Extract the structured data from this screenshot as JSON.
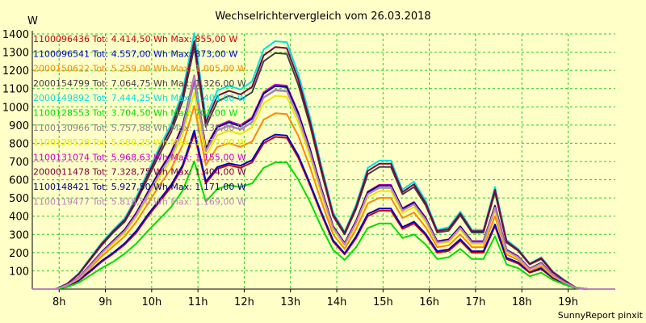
{
  "chart_data": {
    "type": "line",
    "title": "Wechselrichtervergleich vom 26.03.2018",
    "ylabel": "W",
    "footer": "SunnyReport pinxit",
    "ylim": [
      0,
      1400
    ],
    "yticks": [
      100,
      200,
      300,
      400,
      500,
      600,
      700,
      800,
      900,
      1000,
      1100,
      1200,
      1300,
      1400
    ],
    "xlim": [
      7.0,
      19.6
    ],
    "xticks": [
      {
        "v": 7.58,
        "label": "8h"
      },
      {
        "v": 8.58,
        "label": "9h"
      },
      {
        "v": 9.58,
        "label": "10h"
      },
      {
        "v": 10.58,
        "label": "11h"
      },
      {
        "v": 11.58,
        "label": "12h"
      },
      {
        "v": 12.58,
        "label": "13h"
      },
      {
        "v": 13.58,
        "label": "14h"
      },
      {
        "v": 14.58,
        "label": "15h"
      },
      {
        "v": 15.58,
        "label": "16h"
      },
      {
        "v": 16.58,
        "label": "17h"
      },
      {
        "v": 17.58,
        "label": "18h"
      },
      {
        "v": 18.58,
        "label": "19h"
      }
    ],
    "x": [
      7.0,
      7.25,
      7.5,
      7.75,
      8.0,
      8.25,
      8.5,
      8.75,
      9.0,
      9.25,
      9.5,
      9.75,
      10.0,
      10.25,
      10.5,
      10.75,
      11.0,
      11.25,
      11.5,
      11.75,
      12.0,
      12.25,
      12.5,
      12.75,
      13.0,
      13.25,
      13.5,
      13.75,
      14.0,
      14.25,
      14.5,
      14.75,
      15.0,
      15.25,
      15.5,
      15.75,
      16.0,
      16.25,
      16.5,
      16.75,
      17.0,
      17.25,
      17.5,
      17.75,
      18.0,
      18.25,
      18.5,
      18.75,
      19.0,
      19.25,
      19.6
    ],
    "series": [
      {
        "name": "1100096436 Tot: 4.414,50 Wh Max: 855,00 W",
        "color": "#cc0000",
        "values": [
          0,
          0,
          0,
          15,
          45,
          95,
          150,
          195,
          245,
          310,
          400,
          480,
          560,
          670,
          850,
          580,
          660,
          680,
          665,
          695,
          800,
          835,
          830,
          720,
          570,
          410,
          260,
          190,
          280,
          400,
          430,
          430,
          330,
          360,
          295,
          200,
          210,
          265,
          200,
          200,
          345,
          165,
          140,
          90,
          110,
          60,
          30,
          5,
          0,
          0,
          0
        ]
      },
      {
        "name": "1100096541 Tot: 4.557,00 Wh Max: 873,00 W",
        "color": "#0000cc",
        "values": [
          0,
          0,
          0,
          17,
          48,
          100,
          155,
          200,
          252,
          320,
          410,
          490,
          572,
          680,
          870,
          590,
          670,
          690,
          677,
          708,
          814,
          848,
          842,
          732,
          580,
          420,
          268,
          196,
          290,
          412,
          442,
          442,
          340,
          370,
          304,
          208,
          218,
          274,
          208,
          208,
          355,
          172,
          146,
          94,
          115,
          64,
          32,
          6,
          0,
          0,
          0
        ]
      },
      {
        "name": "2000150622 Tot: 5.259,00 Wh Max: 1.005,00 W",
        "color": "#ff8800",
        "values": [
          0,
          0,
          0,
          20,
          55,
          115,
          180,
          235,
          290,
          370,
          470,
          570,
          660,
          790,
          1005,
          680,
          780,
          800,
          780,
          810,
          930,
          965,
          960,
          840,
          670,
          480,
          300,
          220,
          330,
          470,
          500,
          500,
          390,
          420,
          340,
          230,
          240,
          300,
          230,
          230,
          400,
          190,
          160,
          100,
          125,
          70,
          35,
          6,
          0,
          0,
          0
        ]
      },
      {
        "name": "2000154799 Tot: 7.064,75 Wh Max: 1.326,00 W",
        "color": "#404040",
        "values": [
          0,
          0,
          0,
          28,
          80,
          160,
          240,
          310,
          370,
          480,
          610,
          740,
          860,
          1030,
          1326,
          890,
          1030,
          1060,
          1040,
          1080,
          1250,
          1295,
          1290,
          1120,
          900,
          640,
          400,
          300,
          440,
          630,
          670,
          670,
          520,
          560,
          460,
          310,
          320,
          405,
          310,
          310,
          530,
          255,
          210,
          135,
          165,
          92,
          46,
          8,
          0,
          0,
          0
        ]
      },
      {
        "name": "2000149892 Tot: 7.444,25 Wh Max: 1.404,00 W",
        "color": "#00e0e0",
        "values": [
          0,
          0,
          0,
          30,
          85,
          170,
          255,
          325,
          390,
          505,
          645,
          780,
          905,
          1085,
          1404,
          940,
          1090,
          1115,
          1095,
          1140,
          1315,
          1360,
          1355,
          1180,
          945,
          675,
          420,
          315,
          465,
          665,
          705,
          705,
          545,
          590,
          485,
          325,
          340,
          425,
          325,
          325,
          560,
          270,
          220,
          140,
          175,
          97,
          49,
          8,
          0,
          0,
          0
        ]
      },
      {
        "name": "1100128553 Tot: 3.704,50 Wh Max: 701,00 W",
        "color": "#00dd00",
        "values": [
          0,
          0,
          0,
          10,
          35,
          75,
          115,
          150,
          195,
          250,
          320,
          385,
          450,
          540,
          701,
          480,
          550,
          570,
          560,
          580,
          665,
          695,
          695,
          600,
          480,
          340,
          215,
          160,
          230,
          335,
          360,
          360,
          280,
          300,
          245,
          165,
          175,
          220,
          165,
          165,
          290,
          135,
          115,
          70,
          90,
          50,
          25,
          4,
          0,
          0,
          0
        ]
      },
      {
        "name": "1100130966 Tot: 5.757,88 Wh Max: 1.135,00 W",
        "color": "#888888",
        "values": [
          0,
          0,
          0,
          22,
          62,
          128,
          198,
          258,
          318,
          408,
          520,
          630,
          730,
          875,
          1135,
          755,
          870,
          895,
          875,
          915,
          1050,
          1090,
          1085,
          940,
          750,
          535,
          335,
          245,
          365,
          520,
          555,
          555,
          430,
          465,
          380,
          255,
          265,
          335,
          255,
          255,
          445,
          210,
          175,
          110,
          140,
          77,
          38,
          7,
          0,
          0,
          0
        ]
      },
      {
        "name": "1100128528 Tot: 5.589,25 Wh Max: 1.077,00 W",
        "color": "#e8e800",
        "values": [
          0,
          0,
          0,
          21,
          60,
          124,
          192,
          250,
          308,
          396,
          504,
          612,
          708,
          850,
          1077,
          730,
          845,
          868,
          850,
          888,
          1020,
          1060,
          1055,
          912,
          728,
          520,
          325,
          238,
          354,
          505,
          538,
          538,
          418,
          450,
          368,
          248,
          258,
          325,
          248,
          248,
          432,
          204,
          170,
          107,
          136,
          75,
          37,
          7,
          0,
          0,
          0
        ]
      },
      {
        "name": "1100131074 Tot: 5.968,63 Wh Max: 1.155,00 W",
        "color": "#cc00cc",
        "values": [
          0,
          0,
          0,
          23,
          64,
          132,
          205,
          266,
          328,
          420,
          535,
          650,
          752,
          900,
          1155,
          778,
          895,
          922,
          900,
          942,
          1080,
          1122,
          1116,
          968,
          772,
          552,
          345,
          253,
          376,
          535,
          572,
          572,
          443,
          478,
          392,
          263,
          273,
          345,
          263,
          263,
          458,
          216,
          180,
          113,
          144,
          79,
          39,
          7,
          0,
          0,
          0
        ]
      },
      {
        "name": "2000011478 Tot: 7.328,75 Wh Max: 1.404,00 W",
        "color": "#800040",
        "values": [
          0,
          0,
          0,
          28,
          82,
          165,
          248,
          318,
          380,
          492,
          628,
          762,
          884,
          1058,
          1360,
          915,
          1060,
          1088,
          1068,
          1110,
          1282,
          1328,
          1322,
          1150,
          922,
          658,
          410,
          307,
          452,
          648,
          688,
          688,
          532,
          575,
          472,
          318,
          330,
          415,
          318,
          318,
          545,
          262,
          215,
          138,
          170,
          94,
          47,
          8,
          0,
          0,
          0
        ]
      },
      {
        "name": "1100148421 Tot: 5.927,50 Wh Max: 1.171,00 W",
        "color": "#000080",
        "values": [
          0,
          0,
          0,
          23,
          63,
          130,
          203,
          264,
          325,
          416,
          530,
          645,
          746,
          893,
          1171,
          772,
          888,
          915,
          893,
          935,
          1072,
          1114,
          1108,
          962,
          766,
          548,
          343,
          251,
          373,
          531,
          568,
          568,
          440,
          475,
          389,
          261,
          271,
          342,
          261,
          261,
          455,
          214,
          178,
          112,
          143,
          78,
          39,
          7,
          0,
          0,
          0
        ]
      },
      {
        "name": "1100119477 Tot: 5.818,50 Wh Max: 1.169,00 W",
        "color": "#c080c0",
        "values": [
          0,
          0,
          0,
          22,
          62,
          127,
          199,
          259,
          319,
          408,
          520,
          633,
          732,
          877,
          1169,
          758,
          872,
          898,
          877,
          918,
          1052,
          1094,
          1088,
          944,
          752,
          538,
          337,
          246,
          366,
          521,
          558,
          558,
          432,
          466,
          382,
          256,
          266,
          336,
          256,
          256,
          447,
          210,
          175,
          110,
          140,
          77,
          38,
          7,
          0,
          0,
          0
        ]
      }
    ]
  }
}
